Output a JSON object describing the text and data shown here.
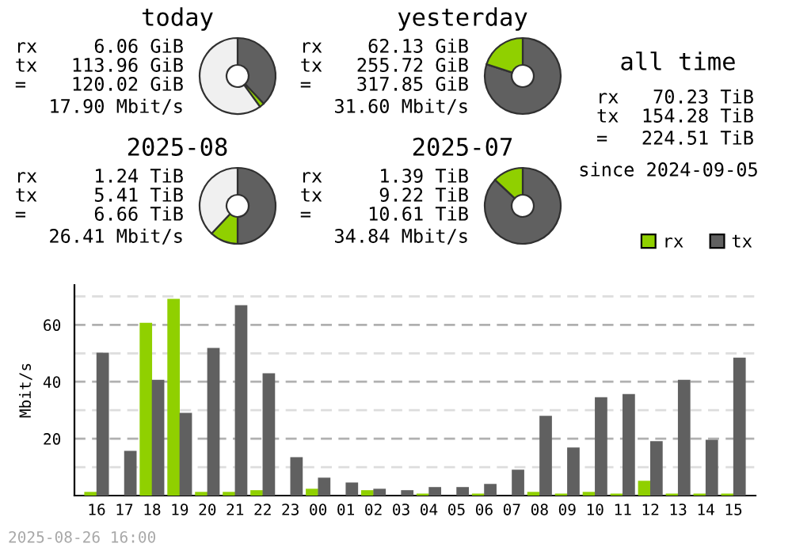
{
  "chart_data": [
    {
      "type": "donut",
      "title": "today",
      "categories": [
        null,
        null,
        null
      ],
      "values": [
        38,
        2,
        60
      ],
      "colors": [
        "#606060",
        "#90d000",
        "#f0f0f0"
      ],
      "annotations": [
        "rx     6.06 GiB",
        "tx   113.96 GiB",
        "=    120.02 GiB",
        "17.90 Mbit/s"
      ]
    },
    {
      "type": "donut",
      "title": "yesterday",
      "categories": [
        null,
        null
      ],
      "values": [
        80,
        20
      ],
      "colors": [
        "#606060",
        "#90d000"
      ],
      "annotations": [
        "rx    62.13 GiB",
        "tx   255.72 GiB",
        "=    317.85 GiB",
        "31.60 Mbit/s"
      ]
    },
    {
      "type": "donut",
      "title": "2025-08",
      "categories": [
        null,
        null,
        null
      ],
      "values": [
        50,
        12,
        38
      ],
      "colors": [
        "#606060",
        "#90d000",
        "#f0f0f0"
      ],
      "annotations": [
        "rx     1.24 TiB",
        "tx     5.41 TiB",
        "=      6.66 TiB",
        "26.41 Mbit/s"
      ]
    },
    {
      "type": "donut",
      "title": "2025-07",
      "categories": [
        null,
        null
      ],
      "values": [
        87,
        13
      ],
      "colors": [
        "#606060",
        "#90d000"
      ],
      "annotations": [
        "rx     1.39 TiB",
        "tx     9.22 TiB",
        "=     10.61 TiB",
        "34.84 Mbit/s"
      ]
    },
    {
      "type": "other",
      "title": "all time",
      "annotations": [
        "rx   70.23 TiB",
        "tx  154.28 TiB",
        "=   224.51 TiB",
        "since 2024-09-05"
      ]
    },
    {
      "type": "bar",
      "ylabel": "Mbit/s",
      "legend": "right",
      "grid": "y",
      "categories": [
        "16",
        "17",
        "18",
        "19",
        "20",
        "21",
        "22",
        "23",
        "00",
        "01",
        "02",
        "03",
        "04",
        "05",
        "06",
        "07",
        "08",
        "09",
        "10",
        "11",
        "12",
        "13",
        "14",
        "15"
      ],
      "ylim": [
        0,
        74
      ],
      "yticks": [
        {
          "value": 10,
          "label": null
        },
        20,
        {
          "value": 30,
          "label": null
        },
        40,
        {
          "value": 50,
          "label": null
        },
        60,
        {
          "value": 70,
          "label": null
        }
      ],
      "series": [
        {
          "name": "rx",
          "color": "#90d000",
          "values": [
            1.3,
            0,
            60.7,
            69.1,
            1.3,
            1.3,
            1.9,
            0,
            2.4,
            0,
            1.9,
            0,
            0.7,
            0,
            0.7,
            0,
            1.3,
            0.7,
            1.3,
            0.7,
            5.2,
            0.7,
            0.7,
            0.7
          ]
        },
        {
          "name": "tx",
          "color": "#606060",
          "values": [
            50.2,
            15.7,
            40.7,
            29.1,
            51.9,
            66.9,
            43,
            13.5,
            6.3,
            4.6,
            2.4,
            1.9,
            3,
            3,
            4.1,
            9.1,
            28,
            16.9,
            34.6,
            35.7,
            19.1,
            40.7,
            19.6,
            48.5
          ]
        }
      ],
      "annotations": [
        "2025-08-26 16:00"
      ]
    }
  ]
}
